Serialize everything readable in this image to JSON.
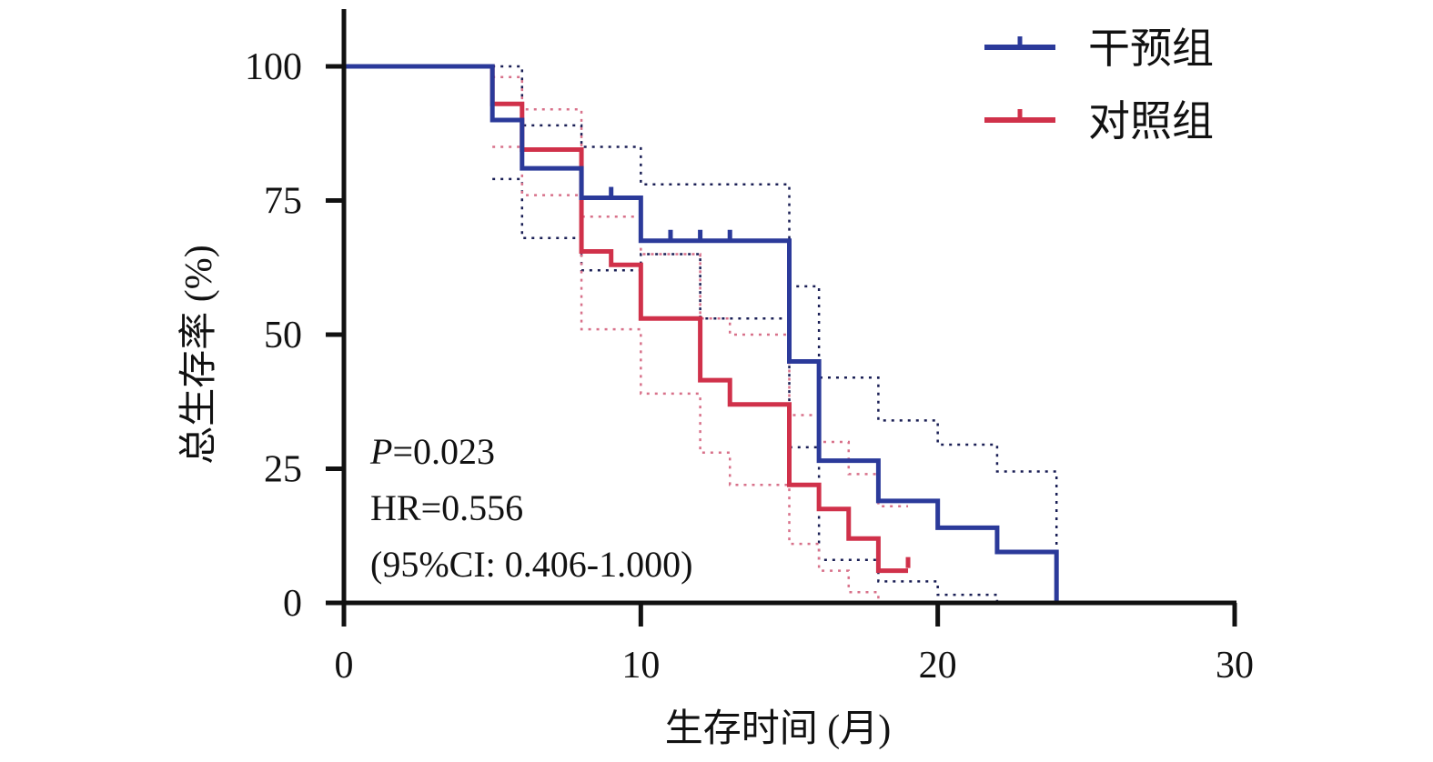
{
  "chart_data": {
    "type": "line",
    "subtype": "kaplan-meier-step",
    "title": "",
    "xlabel": "生存时间 (月)",
    "ylabel": "总生存率 (%)",
    "xlim": [
      0,
      30
    ],
    "ylim": [
      0,
      100
    ],
    "xticks": [
      0,
      10,
      20,
      30
    ],
    "yticks": [
      0,
      25,
      50,
      75,
      100
    ],
    "grid": false,
    "legend_position": "top-right",
    "annotations": {
      "p_prefix": "P",
      "p_value": "=0.023",
      "hr": "HR=0.556",
      "ci": "(95%CI: 0.406-1.000)"
    },
    "series": [
      {
        "name": "干预组",
        "color": "#2b3a9a",
        "steps": [
          [
            0,
            100
          ],
          [
            5,
            90
          ],
          [
            6,
            81
          ],
          [
            8,
            75.5
          ],
          [
            10,
            67.5
          ],
          [
            15,
            45
          ],
          [
            16,
            26.5
          ],
          [
            18,
            19
          ],
          [
            20,
            14
          ],
          [
            22,
            9.5
          ],
          [
            24,
            0
          ]
        ],
        "end": 24,
        "censored": [
          [
            9,
            75.5
          ],
          [
            11,
            67.5
          ],
          [
            12,
            67.5
          ],
          [
            13,
            67.5
          ]
        ],
        "ci_upper": [
          [
            5,
            100
          ],
          [
            6,
            89
          ],
          [
            8,
            85
          ],
          [
            10,
            78
          ],
          [
            15,
            59
          ],
          [
            16,
            42
          ],
          [
            18,
            34
          ],
          [
            20,
            29.5
          ],
          [
            22,
            24.5
          ],
          [
            24,
            0
          ]
        ],
        "ci_lower": [
          [
            5,
            79
          ],
          [
            6,
            68
          ],
          [
            8,
            62
          ],
          [
            10,
            65
          ],
          [
            12,
            53
          ],
          [
            15,
            29
          ],
          [
            16,
            8
          ],
          [
            18,
            4
          ],
          [
            20,
            1.5
          ],
          [
            22,
            0
          ]
        ],
        "ci_end": 25
      },
      {
        "name": "对照组",
        "color": "#d0314a",
        "steps": [
          [
            0,
            100
          ],
          [
            5,
            93
          ],
          [
            6,
            84.5
          ],
          [
            8,
            65.5
          ],
          [
            9,
            63
          ],
          [
            10,
            53
          ],
          [
            12,
            41.5
          ],
          [
            13,
            37
          ],
          [
            15,
            22
          ],
          [
            16,
            17.5
          ],
          [
            17,
            12
          ],
          [
            18,
            6
          ]
        ],
        "end": 19,
        "censored": [
          [
            19,
            6.5
          ]
        ],
        "ci_upper": [
          [
            5,
            98
          ],
          [
            6,
            92
          ],
          [
            8,
            72
          ],
          [
            10,
            65
          ],
          [
            12,
            53
          ],
          [
            13,
            50
          ],
          [
            15,
            35
          ],
          [
            16,
            30
          ],
          [
            17,
            24
          ],
          [
            18,
            18
          ]
        ],
        "ci_lower": [
          [
            5,
            85
          ],
          [
            6,
            76
          ],
          [
            8,
            51
          ],
          [
            10,
            39
          ],
          [
            12,
            28
          ],
          [
            13,
            22
          ],
          [
            15,
            11
          ],
          [
            16,
            6
          ],
          [
            17,
            2
          ],
          [
            18,
            0
          ]
        ],
        "ci_end": 19
      }
    ]
  }
}
